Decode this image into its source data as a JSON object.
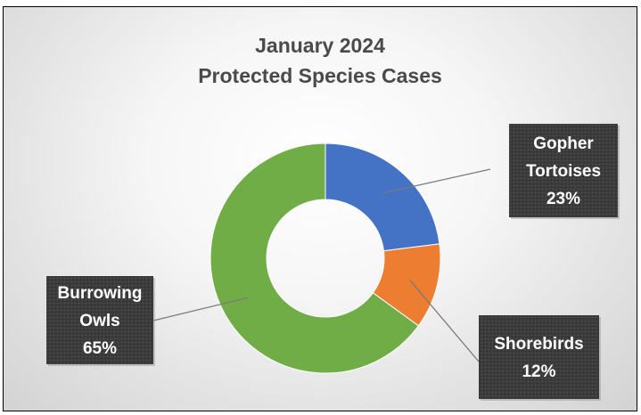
{
  "chart_data": {
    "type": "pie",
    "donut": true,
    "title_lines": [
      "January 2024",
      "Protected Species Cases"
    ],
    "categories": [
      "Gopher Tortoises",
      "Shorebirds",
      "Burrowing Owls"
    ],
    "values": [
      23,
      12,
      65
    ],
    "value_labels": [
      "23%",
      "12%",
      "65%"
    ],
    "label_lines": [
      [
        "Gopher",
        "Tortoises",
        "23%"
      ],
      [
        "Shorebirds",
        "12%"
      ],
      [
        "Burrowing",
        "Owls",
        "65%"
      ]
    ],
    "colors": [
      "#4472c4",
      "#ed7d31",
      "#70ad47"
    ],
    "label_background": "#3a3a3a",
    "legend": "none"
  }
}
